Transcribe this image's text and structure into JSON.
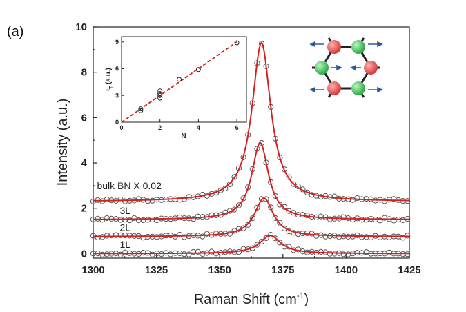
{
  "panel_label": "(a)",
  "chart_data": {
    "type": "scatter",
    "xlabel": "Raman Shift (cm",
    "xlabel_sup": "-1",
    "xlabel_close": ")",
    "ylabel": "Intensity (a.u.)",
    "xlim": [
      1300,
      1425
    ],
    "ylim": [
      -0.2,
      10
    ],
    "xticks": [
      "1300",
      "1325",
      "1350",
      "1375",
      "1400",
      "1425"
    ],
    "yticks": [
      "0",
      "2",
      "4",
      "6",
      "8",
      "10"
    ],
    "series": [
      {
        "name": "1L",
        "baseline": 0.0,
        "peak_center": 1370.0,
        "peak_height": 0.8,
        "fwhm": 10
      },
      {
        "name": "2L",
        "baseline": 0.75,
        "peak_center": 1367.5,
        "peak_height": 1.7,
        "fwhm": 9
      },
      {
        "name": "3L",
        "baseline": 1.5,
        "peak_center": 1366.0,
        "peak_height": 3.4,
        "fwhm": 8
      },
      {
        "name": "bulk BN X 0.02",
        "baseline": 2.3,
        "peak_center": 1366.5,
        "peak_height": 7.0,
        "fwhm": 9
      }
    ],
    "fit_color": "#d62020",
    "marker_color": "#555555",
    "inset": {
      "type": "scatter",
      "xlabel": "N",
      "ylabel": "I",
      "ylabel_sub": "T",
      "ylabel_rest": " (a.u.)",
      "xlim": [
        0,
        6.5
      ],
      "ylim": [
        0,
        9.6
      ],
      "xticks": [
        "0",
        "2",
        "4",
        "6"
      ],
      "yticks": [
        "0",
        "3",
        "6",
        "9"
      ],
      "points": [
        {
          "x": 1,
          "y": 1.3
        },
        {
          "x": 1,
          "y": 1.5
        },
        {
          "x": 2,
          "y": 2.7
        },
        {
          "x": 2,
          "y": 3.0
        },
        {
          "x": 2,
          "y": 3.2
        },
        {
          "x": 2,
          "y": 3.5
        },
        {
          "x": 3,
          "y": 4.8
        },
        {
          "x": 4,
          "y": 5.9
        },
        {
          "x": 6,
          "y": 8.9
        }
      ],
      "fit_line": {
        "x": [
          0,
          6
        ],
        "y": [
          0,
          9.0
        ]
      }
    }
  }
}
